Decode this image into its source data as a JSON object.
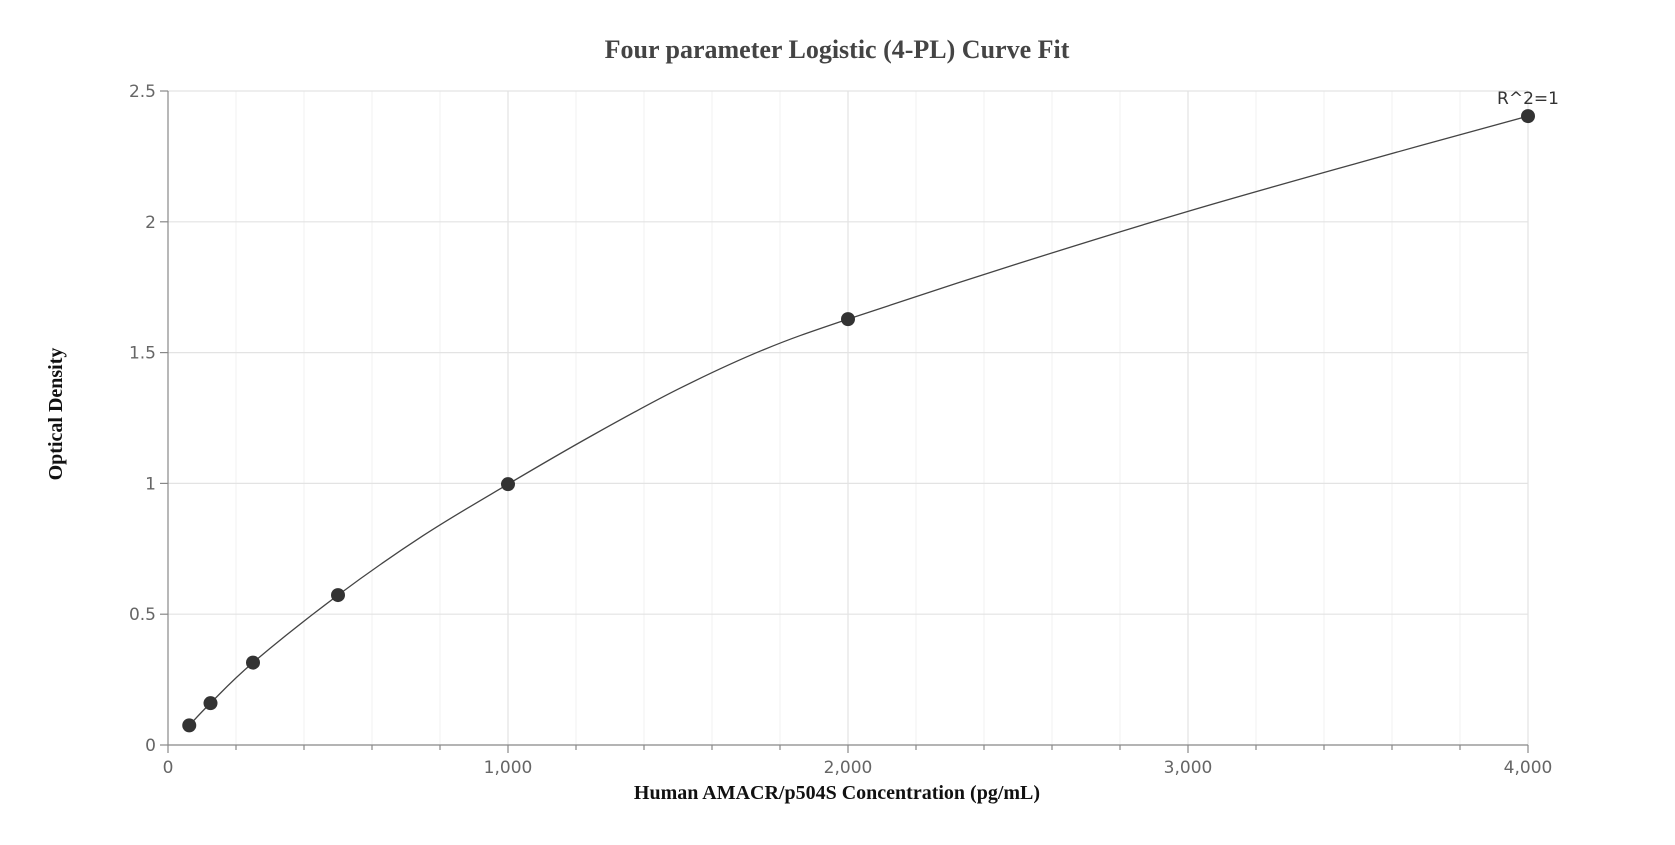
{
  "chart_data": {
    "type": "scatter",
    "title": "Four parameter Logistic (4-PL) Curve Fit",
    "xlabel": "Human AMACR/p504S Concentration (pg/mL)",
    "ylabel": "Optical Density",
    "xlim": [
      0,
      4000
    ],
    "ylim": [
      0,
      2.5
    ],
    "x_ticks": [
      0,
      1000,
      2000,
      3000,
      4000
    ],
    "x_tick_labels": [
      "0",
      "1,000",
      "2,000",
      "3,000",
      "4,000"
    ],
    "y_ticks": [
      0,
      0.5,
      1,
      1.5,
      2,
      2.5
    ],
    "y_tick_labels": [
      "0",
      "0.5",
      "1",
      "1.5",
      "2",
      "2.5"
    ],
    "x_minor_step": 200,
    "y_minor_step": 0.5,
    "grid": true,
    "series": [
      {
        "points": [
          {
            "x": 62.5,
            "y": 0.075
          },
          {
            "x": 125,
            "y": 0.16
          },
          {
            "x": 250,
            "y": 0.315
          },
          {
            "x": 500,
            "y": 0.573
          },
          {
            "x": 1000,
            "y": 0.997
          },
          {
            "x": 2000,
            "y": 1.628
          },
          {
            "x": 4000,
            "y": 2.404
          }
        ]
      }
    ],
    "fit_curve": {
      "x": [
        62.5,
        125,
        250,
        500,
        750,
        1000,
        1250,
        1500,
        1750,
        2000,
        2500,
        3000,
        3500,
        4000
      ],
      "y": [
        0.075,
        0.16,
        0.315,
        0.573,
        0.8,
        0.997,
        1.185,
        1.36,
        1.51,
        1.628,
        1.84,
        2.04,
        2.225,
        2.404
      ]
    },
    "annotations": [
      {
        "text": "R^2=1",
        "x": 4000,
        "y": 2.404
      }
    ],
    "colors": {
      "point": "#333333",
      "curve": "#444444",
      "grid_major": "#e3e3e3",
      "grid_minor": "#f1f1f1"
    }
  }
}
